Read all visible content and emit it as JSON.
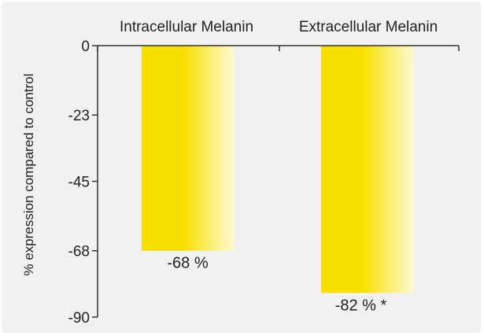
{
  "chart_data": {
    "type": "bar",
    "categories": [
      "Intracellular Melanin",
      "Extracellular Melanin"
    ],
    "values": [
      -68,
      -82
    ],
    "data_labels": [
      "-68 %",
      "-82 % *"
    ],
    "ylabel": "% expression compared to control",
    "xlabel": "",
    "title": "",
    "ylim": [
      -90,
      0
    ],
    "yticks": [
      0,
      -23,
      -45,
      -68,
      -90
    ],
    "ytick_labels": [
      "0",
      "-23",
      "-45",
      "-68",
      "-90"
    ],
    "category_axis_position": "top",
    "grid": false,
    "legend": "none",
    "colors": {
      "bar_main": "#f7e000",
      "bar_fade": "#fff9d4",
      "axis": "#333333",
      "background": "#f1f1f1"
    }
  }
}
